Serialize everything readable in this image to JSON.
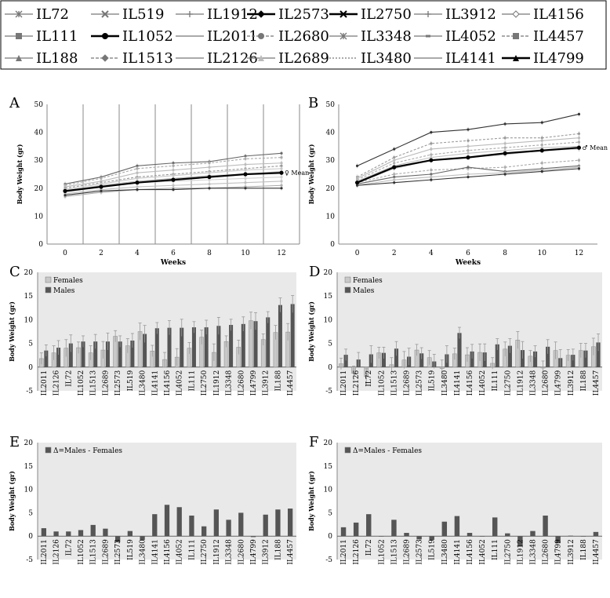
{
  "legend": {
    "rows": [
      [
        {
          "label": "IL72",
          "marker": "star"
        },
        {
          "label": "IL519",
          "marker": "x"
        },
        {
          "label": "IL1912",
          "marker": "plus"
        },
        {
          "label": "IL2573",
          "marker": "diamond",
          "bold": true
        },
        {
          "label": "IL2750",
          "marker": "x",
          "bold": true
        },
        {
          "label": "IL3912",
          "marker": "plus"
        },
        {
          "label": "IL4156",
          "marker": "diamond-open"
        }
      ],
      [
        {
          "label": "IL111",
          "marker": "square"
        },
        {
          "label": "IL1052",
          "marker": "circle",
          "bold": true
        },
        {
          "label": "IL2011",
          "marker": "none"
        },
        {
          "label": "IL2680",
          "marker": "circle",
          "dashed": true
        },
        {
          "label": "IL3348",
          "marker": "star"
        },
        {
          "label": "IL4052",
          "marker": "dash"
        },
        {
          "label": "IL4457",
          "marker": "square",
          "dashed": true
        }
      ],
      [
        {
          "label": "IL188",
          "marker": "triangle"
        },
        {
          "label": "IL1513",
          "marker": "diamond",
          "dashed": true
        },
        {
          "label": "IL2126",
          "marker": "none"
        },
        {
          "label": "IL2689",
          "marker": "triangle-light"
        },
        {
          "label": "IL3480",
          "marker": "none",
          "dotted": true
        },
        {
          "label": "IL4141",
          "marker": "none"
        },
        {
          "label": "IL4799",
          "marker": "triangle",
          "bold": true
        }
      ]
    ]
  },
  "chart_data": [
    {
      "panel": "A",
      "type": "line",
      "title": "",
      "xlabel": "Weeks",
      "ylabel": "Body Weight (gr)",
      "x": [
        0,
        2,
        4,
        6,
        8,
        10,
        12
      ],
      "ylim": [
        0,
        50
      ],
      "yticks": [
        0,
        10,
        20,
        30,
        40,
        50
      ],
      "mean_label": "♀ Mean",
      "series": [
        {
          "name": "IL4457",
          "values": [
            21.5,
            24,
            28,
            29,
            29.5,
            31.5,
            32.5
          ],
          "color": "#666"
        },
        {
          "name": "IL188",
          "values": [
            21,
            23.5,
            27,
            28,
            29,
            30.5,
            31
          ],
          "color": "#aaa",
          "dashed": true
        },
        {
          "name": "IL3912",
          "values": [
            20.5,
            22.5,
            25.5,
            26.5,
            27.5,
            28.5,
            29
          ],
          "color": "#bbb"
        },
        {
          "name": "IL2680",
          "values": [
            20,
            22,
            24,
            25,
            26,
            27,
            28
          ],
          "color": "#999",
          "dashed": true
        },
        {
          "name": "IL4141",
          "values": [
            19.5,
            21.5,
            23.5,
            24.5,
            25.5,
            26.5,
            27
          ],
          "color": "#c8c8c8"
        },
        {
          "name": "IL1912",
          "values": [
            19,
            21,
            22.5,
            23.5,
            24.5,
            25,
            26
          ],
          "color": "#bbb"
        },
        {
          "name": "IL2011",
          "values": [
            18.5,
            20.5,
            22,
            22.5,
            23,
            23.5,
            24
          ],
          "color": "#d0d0d0"
        },
        {
          "name": "IL2126",
          "values": [
            18,
            19.5,
            20.5,
            21,
            21.5,
            22,
            22.5
          ],
          "color": "#c0c0c0"
        },
        {
          "name": "IL72",
          "values": [
            17,
            18.5,
            19.5,
            20,
            20,
            20.5,
            21
          ],
          "color": "#aaa"
        },
        {
          "name": "IL1052",
          "values": [
            17.5,
            19,
            19.5,
            19.5,
            20,
            20,
            20
          ],
          "color": "#333"
        },
        {
          "name": "Mean",
          "values": [
            19,
            20.5,
            22,
            23,
            24,
            25,
            25.5
          ],
          "color": "#000",
          "bold": true
        }
      ]
    },
    {
      "panel": "B",
      "type": "line",
      "title": "",
      "xlabel": "Weeks",
      "ylabel": "Body Weight (gr)",
      "x": [
        0,
        2,
        4,
        6,
        8,
        10,
        12
      ],
      "ylim": [
        0,
        50
      ],
      "yticks": [
        0,
        10,
        20,
        30,
        40,
        50
      ],
      "mean_label": "♂ Mean",
      "series": [
        {
          "name": "IL4457",
          "values": [
            28,
            34,
            40,
            41,
            43,
            43.5,
            46.5
          ],
          "color": "#333"
        },
        {
          "name": "IL188",
          "values": [
            24,
            31,
            36,
            37,
            38,
            38,
            39.5
          ],
          "color": "#999",
          "dashed": true
        },
        {
          "name": "IL3912",
          "values": [
            23.5,
            30,
            34,
            35,
            36,
            37,
            38
          ],
          "color": "#bbb"
        },
        {
          "name": "IL2680",
          "values": [
            23,
            29,
            32,
            33.5,
            34.5,
            35.5,
            36.5
          ],
          "color": "#aaa",
          "dashed": true
        },
        {
          "name": "IL1912",
          "values": [
            22.5,
            28,
            31,
            32.5,
            33.5,
            34.5,
            35
          ],
          "color": "#c0c0c0"
        },
        {
          "name": "IL4141",
          "values": [
            22,
            27,
            30,
            31,
            32,
            33.5,
            34
          ],
          "color": "#c8c8c8"
        },
        {
          "name": "IL2126",
          "values": [
            22,
            25,
            26.5,
            27,
            27.5,
            29,
            30
          ],
          "color": "#aaa",
          "dashed": true
        },
        {
          "name": "IL519",
          "values": [
            21.5,
            24,
            25,
            27.5,
            26,
            27,
            28
          ],
          "color": "#666"
        },
        {
          "name": "IL2011",
          "values": [
            21,
            23,
            24,
            25,
            25.5,
            26.5,
            27.5
          ],
          "color": "#bbb"
        },
        {
          "name": "IL1052",
          "values": [
            21,
            22,
            23,
            24,
            25,
            26,
            27
          ],
          "color": "#333"
        },
        {
          "name": "Mean",
          "values": [
            22,
            27.5,
            30,
            31,
            32.5,
            33.5,
            34.5
          ],
          "color": "#000",
          "bold": true
        }
      ]
    },
    {
      "panel": "C",
      "type": "bar",
      "ylabel": "Body Weight (gr)",
      "ylim": [
        -5,
        20
      ],
      "yticks": [
        -5,
        0,
        5,
        10,
        15,
        20
      ],
      "categories": [
        "IL2011",
        "IL2126",
        "IL72",
        "IL1052",
        "IL1513",
        "IL2689",
        "IL2573",
        "IL519",
        "IL3480",
        "IL4141",
        "IL4156",
        "IL4052",
        "IL111",
        "IL2750",
        "IL1912",
        "IL3348",
        "IL2680",
        "IL4799",
        "IL3912",
        "IL188",
        "IL4457"
      ],
      "series": [
        {
          "name": "Females",
          "values": [
            1.8,
            3,
            4,
            4.1,
            3,
            3.6,
            6.5,
            4.5,
            7.5,
            3.4,
            1.6,
            2.1,
            4,
            6.3,
            3.1,
            5.4,
            4.2,
            9.8,
            5.8,
            7.3,
            7.4
          ],
          "color": "#c8c8c8"
        },
        {
          "name": "Males",
          "values": [
            3.5,
            4.1,
            5,
            5.4,
            5.4,
            5.4,
            5.4,
            5.6,
            7,
            8.2,
            8.3,
            8.3,
            8.4,
            8.4,
            8.7,
            8.9,
            9.1,
            9.7,
            10.5,
            13.1,
            13.3
          ],
          "color": "#555"
        }
      ]
    },
    {
      "panel": "D",
      "type": "bar",
      "ylabel": "Body Weight (gr)",
      "ylim": [
        -5,
        20
      ],
      "yticks": [
        -5,
        0,
        5,
        10,
        15,
        20
      ],
      "categories": [
        "IL2011",
        "IL2126",
        "IL72",
        "IL1052",
        "IL1513",
        "IL2689",
        "IL2573",
        "IL519",
        "IL3480",
        "IL4141",
        "IL4156",
        "IL4052",
        "IL111",
        "IL2750",
        "IL1912",
        "IL3348",
        "IL2680",
        "IL4799",
        "IL3912",
        "IL188",
        "IL4457"
      ],
      "series": [
        {
          "name": "Females",
          "values": [
            0.7,
            -1.3,
            -2,
            3,
            0.5,
            1.5,
            3.6,
            2,
            -0.3,
            2.8,
            2.6,
            3.1,
            0.8,
            3.8,
            5.7,
            2.3,
            -0.2,
            3.5,
            2.5,
            3.5,
            4.3
          ],
          "color": "#c8c8c8"
        },
        {
          "name": "Males",
          "values": [
            2.6,
            1.6,
            2.7,
            3,
            3.9,
            2.2,
            2.9,
            1.2,
            2.7,
            7.2,
            3.3,
            3.1,
            4.8,
            4.5,
            3.6,
            3.3,
            4.3,
            1.9,
            2.6,
            3.5,
            5.2
          ],
          "color": "#555"
        }
      ]
    },
    {
      "panel": "E",
      "type": "bar",
      "ylabel": "Body Weight (gr)",
      "ylim": [
        -5,
        20
      ],
      "yticks": [
        -5,
        0,
        5,
        10,
        15,
        20
      ],
      "categories": [
        "IL2011",
        "IL2126",
        "IL72",
        "IL1052",
        "IL1513",
        "IL2689",
        "IL2573",
        "IL519",
        "IL3480",
        "IL4141",
        "IL4156",
        "IL4052",
        "IL111",
        "IL2750",
        "IL1912",
        "IL3348",
        "IL2680",
        "IL4799",
        "IL3912",
        "IL188",
        "IL4457"
      ],
      "series": [
        {
          "name": "Δ=Males - Females",
          "values": [
            1.7,
            1,
            1,
            1.3,
            2.4,
            1.6,
            -1.3,
            1.1,
            -0.8,
            4.7,
            6.7,
            6.2,
            4.4,
            2.1,
            5.7,
            3.5,
            5,
            -0.2,
            4.6,
            5.7,
            5.9
          ],
          "color": "#555"
        }
      ]
    },
    {
      "panel": "F",
      "type": "bar",
      "ylabel": "Body Weight (gr)",
      "ylim": [
        -5,
        20
      ],
      "yticks": [
        -5,
        0,
        5,
        10,
        15,
        20
      ],
      "categories": [
        "IL2011",
        "IL2126",
        "IL72",
        "IL1052",
        "IL1513",
        "IL2689",
        "IL2573",
        "IL519",
        "IL3480",
        "IL4141",
        "IL4156",
        "IL4052",
        "IL111",
        "IL2750",
        "IL1912",
        "IL3348",
        "IL2680",
        "IL4799",
        "IL3912",
        "IL188",
        "IL4457"
      ],
      "series": [
        {
          "name": "Δ=Males - Females",
          "values": [
            1.9,
            2.9,
            4.7,
            0,
            3.5,
            0.7,
            -0.7,
            -0.8,
            3.1,
            4.3,
            0.7,
            0,
            4,
            0.6,
            -2.2,
            1.1,
            4.4,
            -1.5,
            0.1,
            0,
            0.9
          ],
          "color": "#555"
        }
      ]
    }
  ]
}
